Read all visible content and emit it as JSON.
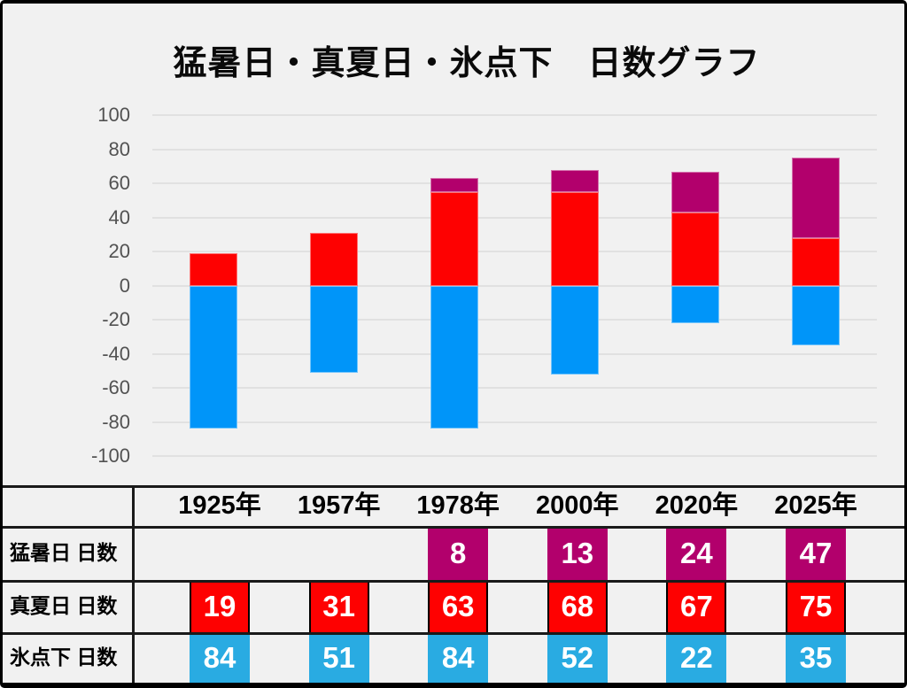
{
  "title": "猛暑日・真夏日・氷点下　日数グラフ",
  "colors": {
    "background": "#F1F1F1",
    "border": "#000000",
    "gridline": "#E1E1E1",
    "axis_label": "#525252",
    "extreme_heat_purple": "#B2006C",
    "midsummer_red": "#FE0101",
    "below_freezing_blue_chart": "#0095F9",
    "below_freezing_blue_table": "#29ABE2"
  },
  "chart_data": {
    "type": "bar",
    "stacked": true,
    "title": "猛暑日・真夏日・氷点下　日数グラフ",
    "categories": [
      "1925年",
      "1957年",
      "1978年",
      "2000年",
      "2020年",
      "2025年"
    ],
    "series": [
      {
        "name": "猛暑日 日数",
        "color": "#B2006C",
        "values": [
          null,
          null,
          8,
          13,
          24,
          47
        ]
      },
      {
        "name": "真夏日 日数",
        "color": "#FE0101",
        "values": [
          19,
          31,
          63,
          68,
          67,
          75
        ]
      },
      {
        "name": "氷点下 日数",
        "color": "#29ABE2",
        "values": [
          84,
          51,
          84,
          52,
          22,
          35
        ]
      }
    ],
    "ylabel": "",
    "xlabel": "",
    "ylim": [
      -100,
      100
    ],
    "yticks": [
      100,
      80,
      60,
      40,
      20,
      0,
      -20,
      -40,
      -60,
      -80,
      -100
    ],
    "grid": true,
    "legend": "none",
    "notes": "Positive stack height equals 真夏日 value; magenta top segment height equals 猛暑日 value; 氷点下 plotted as negative blue bar."
  },
  "table": {
    "col_headers": [
      "1925年",
      "1957年",
      "1978年",
      "2000年",
      "2020年",
      "2025年"
    ],
    "rows": [
      {
        "label": "猛暑日 日数",
        "values": [
          "",
          "",
          "8",
          "13",
          "24",
          "47"
        ],
        "cell_color": "#B2006C",
        "cell_border": false
      },
      {
        "label": "真夏日 日数",
        "values": [
          "19",
          "31",
          "63",
          "68",
          "67",
          "75"
        ],
        "cell_color": "#FE0101",
        "cell_border": true
      },
      {
        "label": "氷点下 日数",
        "values": [
          "84",
          "51",
          "84",
          "52",
          "22",
          "35"
        ],
        "cell_color": "#29ABE2",
        "cell_border": false
      }
    ]
  }
}
